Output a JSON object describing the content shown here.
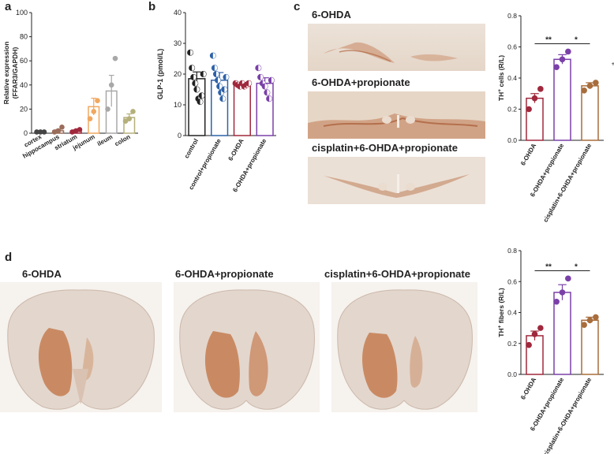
{
  "panels": {
    "a": "a",
    "b": "b",
    "c": "c",
    "d": "d"
  },
  "colors": {
    "cortex": "#444444",
    "hippocampus": "#9a6d5a",
    "striatum": "#a0283c",
    "jejunum": "#f0a860",
    "ileum": "#a8a8a8",
    "colon": "#b5b07a",
    "control": "#222222",
    "control_propionate": "#2e62a8",
    "ohda": "#a0283c",
    "ohda_propionate": "#7a40a8",
    "cisplatin": "#a86d3c"
  },
  "images": {
    "c_labels": [
      "6-OHDA",
      "6-OHDA+propionate",
      "cisplatin+6-OHDA+propionate"
    ],
    "d_labels": [
      "6-OHDA",
      "6-OHDA+propionate",
      "cisplatin+6-OHDA+propionate"
    ]
  },
  "chart_data": [
    {
      "id": "a",
      "type": "bar",
      "ylabel": "Relative expression (FFAR3/GAPDH)",
      "ylim": [
        0,
        100
      ],
      "yticks": [
        0,
        20,
        40,
        60,
        80,
        100
      ],
      "categories": [
        "cortex",
        "hippocampus",
        "striatum",
        "jejunum",
        "ileum",
        "colon"
      ],
      "values": [
        1,
        2,
        2,
        22,
        35,
        13
      ],
      "errors": [
        0.5,
        1,
        0.8,
        7,
        13,
        3
      ],
      "points": [
        [
          1,
          1,
          1
        ],
        [
          1,
          2,
          5
        ],
        [
          1,
          2,
          3
        ],
        [
          12,
          18,
          27
        ],
        [
          20,
          40,
          62
        ],
        [
          10,
          12,
          18
        ]
      ],
      "colorKeys": [
        "cortex",
        "hippocampus",
        "striatum",
        "jejunum",
        "ileum",
        "colon"
      ]
    },
    {
      "id": "b",
      "type": "bar",
      "ylabel": "GLP-1 (pmol/L)",
      "ylim": [
        0,
        40
      ],
      "yticks": [
        0,
        10,
        20,
        30,
        40
      ],
      "categories": [
        "control",
        "control+propionate",
        "6-OHDA",
        "6-OHDA+propionate"
      ],
      "values": [
        18.5,
        18,
        16.5,
        17
      ],
      "errors": [
        2.2,
        2.5,
        0.5,
        1.8
      ],
      "points": [
        [
          27,
          22,
          19,
          17,
          15,
          12,
          11,
          13,
          20
        ],
        [
          26,
          22,
          20,
          18,
          16,
          14,
          12,
          15,
          19
        ],
        [
          17,
          16.5,
          16,
          17,
          16,
          16.5,
          17
        ],
        [
          22,
          19,
          17,
          16,
          14,
          12,
          18
        ]
      ],
      "colorKeys": [
        "control",
        "control_propionate",
        "ohda",
        "ohda_propionate"
      ]
    },
    {
      "id": "c",
      "type": "bar",
      "ylabel_pre": "TH",
      "ylabel_sup": "+",
      "ylabel_post": " cells (R/L)",
      "ylim": [
        0,
        0.8
      ],
      "yticks": [
        0.0,
        0.2,
        0.4,
        0.6,
        0.8
      ],
      "categories": [
        "6-OHDA",
        "6-OHDA+propionate",
        "cisplatin+6-OHDA+propionate"
      ],
      "values": [
        0.27,
        0.52,
        0.35
      ],
      "errors": [
        0.03,
        0.03,
        0.02
      ],
      "points": [
        [
          0.2,
          0.27,
          0.33
        ],
        [
          0.47,
          0.52,
          0.57
        ],
        [
          0.32,
          0.35,
          0.37
        ]
      ],
      "colorKeys": [
        "ohda",
        "ohda_propionate",
        "cisplatin"
      ],
      "sig": [
        "**",
        "*"
      ],
      "side_mark": "+"
    },
    {
      "id": "d",
      "type": "bar",
      "ylabel_pre": "TH",
      "ylabel_sup": "+",
      "ylabel_post": " fibers (R/L)",
      "ylim": [
        0,
        0.8
      ],
      "yticks": [
        0.0,
        0.2,
        0.4,
        0.6,
        0.8
      ],
      "categories": [
        "6-OHDA",
        "6-OHDA+propionate",
        "cisplatin+6-OHDA+propionate"
      ],
      "values": [
        0.25,
        0.53,
        0.35
      ],
      "errors": [
        0.03,
        0.05,
        0.02
      ],
      "points": [
        [
          0.19,
          0.26,
          0.3
        ],
        [
          0.47,
          0.53,
          0.62
        ],
        [
          0.32,
          0.35,
          0.37
        ]
      ],
      "colorKeys": [
        "ohda",
        "ohda_propionate",
        "cisplatin"
      ],
      "sig": [
        "**",
        "*"
      ]
    }
  ]
}
